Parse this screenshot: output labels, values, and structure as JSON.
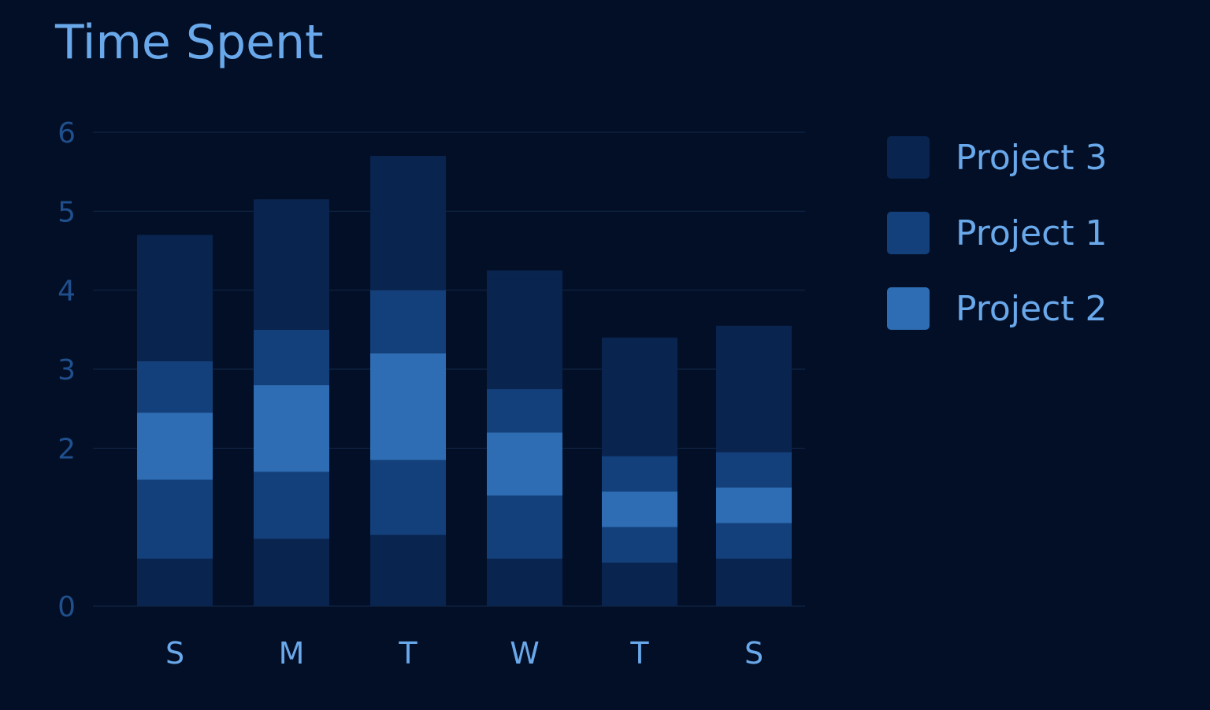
{
  "chart_data": {
    "type": "bar",
    "stacked": true,
    "title": "Time Spent",
    "xlabel": "",
    "ylabel": "",
    "ylim": [
      0,
      6
    ],
    "yticks": [
      "0",
      "2",
      "3",
      "4",
      "5",
      "6"
    ],
    "grid": true,
    "legend_placement": "right",
    "categories": [
      "S",
      "M",
      "T",
      "W",
      "T",
      "S"
    ],
    "series": [
      {
        "name": "Project 3",
        "color": "#09244e",
        "values": [
          0.6,
          0.85,
          0.9,
          0.6,
          0.55,
          0.6
        ]
      },
      {
        "name": "Project 1",
        "color": "#13407b",
        "values": [
          1.0,
          0.85,
          0.95,
          0.8,
          0.45,
          0.45
        ]
      },
      {
        "name": "Project 2",
        "color": "#2e6db3",
        "values": [
          0.85,
          1.1,
          1.35,
          0.8,
          0.45,
          0.45
        ]
      },
      {
        "name": "Project 1",
        "color": "#13407b",
        "values": [
          0.65,
          0.7,
          0.8,
          0.55,
          0.45,
          0.45
        ]
      },
      {
        "name": "Project 3",
        "color": "#09244e",
        "values": [
          1.6,
          1.65,
          1.7,
          1.5,
          1.5,
          1.6
        ]
      }
    ]
  },
  "legend": [
    {
      "label": "Project 3",
      "color": "#09244e"
    },
    {
      "label": "Project 1",
      "color": "#13407b"
    },
    {
      "label": "Project 2",
      "color": "#2e6db3"
    }
  ],
  "colors": {
    "background": "#030f26",
    "title": "#69a8ea",
    "axis_text": "#1f4f8c",
    "grid": "#13284a"
  }
}
